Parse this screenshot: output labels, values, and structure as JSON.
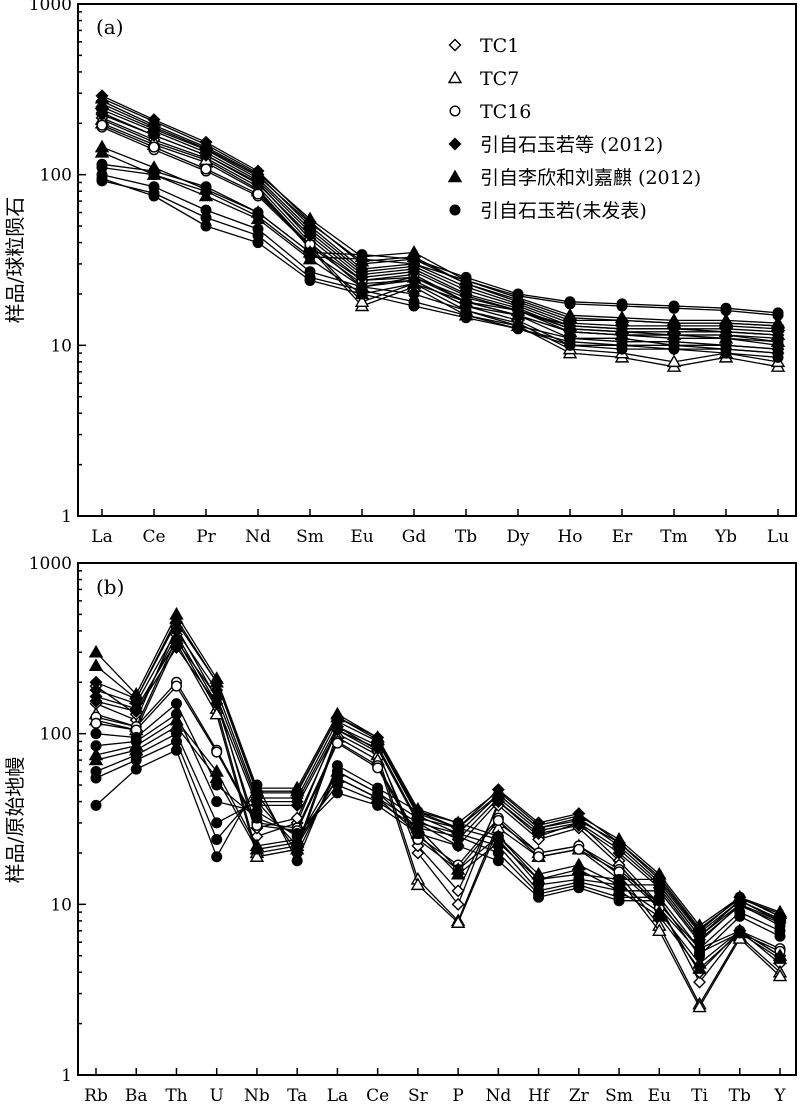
{
  "chart_data": [
    {
      "type": "line",
      "panel_label": "(a)",
      "ylabel": "样品/球粒陨石",
      "yscale": "log",
      "ylim": [
        1,
        1000
      ],
      "yticks": [
        "1",
        "10",
        "100",
        "1000"
      ],
      "categories": [
        "La",
        "Ce",
        "Pr",
        "Nd",
        "Sm",
        "Eu",
        "Gd",
        "Tb",
        "Dy",
        "Ho",
        "Er",
        "Tm",
        "Yb",
        "Lu"
      ],
      "legend": [
        {
          "marker": "diamond-open",
          "label": "TC1"
        },
        {
          "marker": "triangle-open",
          "label": "TC7"
        },
        {
          "marker": "circle-open",
          "label": "TC16"
        },
        {
          "marker": "diamond-filled",
          "label": "引自石玉若等 (2012)"
        },
        {
          "marker": "triangle-filled",
          "label": "引自李欣和刘嘉麒 (2012)"
        },
        {
          "marker": "circle-filled",
          "label": "引自石玉若(未发表)"
        }
      ],
      "series": [
        {
          "name": "TC1",
          "marker": "diamond-open",
          "values": [
            215,
            160,
            125,
            85,
            40,
            22,
            24,
            17,
            14,
            10,
            10,
            9.5,
            9.5,
            9
          ]
        },
        {
          "name": "TC1",
          "marker": "diamond-open",
          "values": [
            230,
            170,
            130,
            90,
            42,
            24,
            26,
            18,
            15,
            11,
            11,
            10,
            10,
            9.5
          ]
        },
        {
          "name": "TC7",
          "marker": "triangle-open",
          "values": [
            200,
            150,
            118,
            80,
            37,
            17,
            22,
            15,
            13,
            9,
            8.5,
            7.5,
            8.5,
            7.5
          ]
        },
        {
          "name": "TC7",
          "marker": "triangle-open",
          "values": [
            210,
            155,
            122,
            82,
            38,
            18,
            23,
            16,
            13.5,
            9.5,
            9,
            8,
            9,
            8
          ]
        },
        {
          "name": "TC16",
          "marker": "circle-open",
          "values": [
            190,
            140,
            105,
            75,
            38,
            23,
            24,
            17,
            15,
            12,
            11.5,
            11,
            11,
            10
          ]
        },
        {
          "name": "TC16",
          "marker": "circle-open",
          "values": [
            195,
            145,
            108,
            77,
            39,
            24,
            25,
            18,
            16,
            12.5,
            12,
            11.5,
            11.5,
            10.5
          ]
        },
        {
          "name": "引自石玉若等 (2012)",
          "marker": "diamond-filled",
          "values": [
            290,
            210,
            155,
            105,
            53,
            30,
            32,
            23,
            18,
            14,
            14,
            13.5,
            13.5,
            13
          ]
        },
        {
          "name": "引自石玉若等 (2012)",
          "marker": "diamond-filled",
          "values": [
            270,
            195,
            145,
            100,
            50,
            28,
            30,
            22,
            17.5,
            13.5,
            13,
            13,
            13,
            12.5
          ]
        },
        {
          "name": "引自石玉若等 (2012)",
          "marker": "diamond-filled",
          "values": [
            250,
            185,
            140,
            95,
            48,
            27,
            29,
            21,
            17,
            13,
            12.5,
            12.5,
            12.5,
            12
          ]
        },
        {
          "name": "引自石玉若等 (2012)",
          "marker": "diamond-filled",
          "values": [
            240,
            180,
            135,
            92,
            46,
            26,
            28,
            20,
            16.5,
            12.5,
            12,
            12,
            12,
            11.5
          ]
        },
        {
          "name": "引自石玉若等 (2012)",
          "marker": "diamond-filled",
          "values": [
            225,
            170,
            130,
            88,
            44,
            25,
            27,
            19.5,
            16,
            12,
            11.5,
            11.5,
            11.5,
            11
          ]
        },
        {
          "name": "引自李欣和刘嘉麒 (2012)",
          "marker": "triangle-filled",
          "values": [
            280,
            205,
            150,
            102,
            55,
            33,
            35,
            24,
            19,
            15,
            14.5,
            14,
            14,
            13.5
          ]
        },
        {
          "name": "引自李欣和刘嘉麒 (2012)",
          "marker": "triangle-filled",
          "values": [
            260,
            190,
            142,
            98,
            52,
            31,
            33,
            23,
            18.5,
            14.5,
            14,
            13.5,
            13.5,
            13
          ]
        },
        {
          "name": "引自李欣和刘嘉麒 (2012)",
          "marker": "triangle-filled",
          "values": [
            145,
            110,
            82,
            60,
            35,
            22,
            25,
            19,
            16,
            13,
            12.5,
            12.5,
            12,
            11.5
          ]
        },
        {
          "name": "引自李欣和刘嘉麒 (2012)",
          "marker": "triangle-filled",
          "values": [
            135,
            100,
            75,
            55,
            32,
            20,
            23,
            18,
            15,
            12,
            11.5,
            11.5,
            11,
            10.5
          ]
        },
        {
          "name": "引自石玉若(未发表)",
          "marker": "circle-filled",
          "values": [
            115,
            105,
            85,
            60,
            35,
            34,
            32,
            25,
            20,
            18,
            17.5,
            17,
            16.5,
            15.5
          ]
        },
        {
          "name": "引自石玉若(未发表)",
          "marker": "circle-filled",
          "values": [
            110,
            100,
            80,
            57,
            33,
            32,
            30,
            24,
            19.5,
            17.5,
            17,
            16.5,
            16,
            15
          ]
        },
        {
          "name": "引自石玉若(未发表)",
          "marker": "circle-filled",
          "values": [
            100,
            85,
            62,
            48,
            27,
            22,
            20,
            16,
            13,
            11,
            10.5,
            10.5,
            10,
            9.5
          ]
        },
        {
          "name": "引自石玉若(未发表)",
          "marker": "circle-filled",
          "values": [
            92,
            78,
            56,
            44,
            25,
            21,
            18,
            15,
            12.5,
            10.5,
            10,
            10,
            9.5,
            9
          ]
        },
        {
          "name": "引自石玉若(未发表)",
          "marker": "circle-filled",
          "values": [
            95,
            75,
            50,
            40,
            24,
            20,
            17,
            14.5,
            12.5,
            10,
            9.5,
            9.5,
            9,
            8.5
          ]
        }
      ]
    },
    {
      "type": "line",
      "panel_label": "(b)",
      "ylabel": "样品/原始地幔",
      "yscale": "log",
      "ylim": [
        1,
        1000
      ],
      "yticks": [
        "1",
        "10",
        "100",
        "1000"
      ],
      "categories": [
        "Rb",
        "Ba",
        "Th",
        "U",
        "Nb",
        "Ta",
        "La",
        "Ce",
        "Sr",
        "P",
        "Nd",
        "Hf",
        "Zr",
        "Sm",
        "Eu",
        "Ti",
        "Tb",
        "Y"
      ],
      "series": [
        {
          "name": "TC1",
          "marker": "diamond-open",
          "values": [
            150,
            120,
            420,
            160,
            25,
            30,
            110,
            80,
            20,
            10,
            40,
            25,
            30,
            18,
            10,
            3.5,
            7,
            4.5
          ]
        },
        {
          "name": "TC1",
          "marker": "diamond-open",
          "values": [
            190,
            130,
            380,
            150,
            28,
            32,
            105,
            78,
            22,
            12,
            38,
            24,
            28,
            17,
            9.5,
            4,
            7,
            5
          ]
        },
        {
          "name": "TC7",
          "marker": "triangle-open",
          "values": [
            130,
            110,
            360,
            140,
            20,
            22,
            100,
            75,
            14,
            8,
            30,
            20,
            22,
            15,
            7.5,
            2.6,
            6.5,
            4
          ]
        },
        {
          "name": "TC7",
          "marker": "triangle-open",
          "values": [
            120,
            105,
            340,
            130,
            19,
            21,
            95,
            70,
            13,
            7.8,
            28,
            19,
            21,
            14,
            7,
            2.5,
            6.3,
            3.8
          ]
        },
        {
          "name": "TC16",
          "marker": "circle-open",
          "values": [
            125,
            110,
            200,
            80,
            30,
            28,
            90,
            65,
            25,
            17,
            32,
            20,
            22,
            16,
            10,
            5.5,
            7,
            5.5
          ]
        },
        {
          "name": "TC16",
          "marker": "circle-open",
          "values": [
            115,
            105,
            190,
            78,
            29,
            27,
            88,
            63,
            24,
            16,
            31,
            19,
            21,
            15.5,
            9.5,
            5.2,
            6.8,
            5.3
          ]
        },
        {
          "name": "引自石玉若等 (2012)",
          "marker": "diamond-filled",
          "values": [
            200,
            160,
            450,
            200,
            45,
            45,
            125,
            95,
            35,
            28,
            47,
            30,
            34,
            23,
            14,
            7,
            11,
            8.5
          ]
        },
        {
          "name": "引自石玉若等 (2012)",
          "marker": "diamond-filled",
          "values": [
            180,
            150,
            400,
            180,
            42,
            42,
            118,
            90,
            33,
            26,
            44,
            28,
            32,
            22,
            13.5,
            6.8,
            10.5,
            8.2
          ]
        },
        {
          "name": "引自石玉若等 (2012)",
          "marker": "diamond-filled",
          "values": [
            165,
            140,
            350,
            165,
            40,
            40,
            110,
            85,
            31,
            24,
            42,
            27,
            30,
            21,
            13,
            6.5,
            10,
            8
          ]
        },
        {
          "name": "引自石玉若等 (2012)",
          "marker": "diamond-filled",
          "values": [
            155,
            135,
            320,
            150,
            38,
            38,
            105,
            82,
            30,
            22,
            40,
            26,
            29,
            20,
            12.5,
            6.2,
            9.8,
            7.8
          ]
        },
        {
          "name": "引自李欣和刘嘉麒 (2012)",
          "marker": "triangle-filled",
          "values": [
            300,
            170,
            500,
            210,
            48,
            48,
            130,
            95,
            36,
            30,
            46,
            29,
            33,
            24,
            15,
            7.5,
            11,
            9
          ]
        },
        {
          "name": "引自李欣和刘嘉麒 (2012)",
          "marker": "triangle-filled",
          "values": [
            250,
            160,
            470,
            200,
            46,
            46,
            125,
            92,
            34,
            28,
            44,
            28,
            31,
            23,
            14.5,
            7.2,
            10.8,
            8.8
          ]
        },
        {
          "name": "引自李欣和刘嘉麒 (2012)",
          "marker": "triangle-filled",
          "values": [
            75,
            85,
            120,
            60,
            22,
            24,
            60,
            45,
            28,
            16,
            25,
            15,
            17,
            13,
            9,
            4.5,
            7,
            5
          ]
        },
        {
          "name": "引自李欣和刘嘉麒 (2012)",
          "marker": "triangle-filled",
          "values": [
            70,
            80,
            110,
            55,
            21,
            23,
            55,
            42,
            26,
            15,
            23,
            14,
            16,
            12,
            8.5,
            4.2,
            6.8,
            4.8
          ]
        },
        {
          "name": "引自石玉若(未发表)",
          "marker": "circle-filled",
          "values": [
            38,
            62,
            80,
            19,
            50,
            18,
            65,
            48,
            35,
            30,
            25,
            14,
            15,
            14,
            14,
            7,
            11,
            8.5
          ]
        },
        {
          "name": "引自石玉若(未发表)",
          "marker": "circle-filled",
          "values": [
            55,
            70,
            90,
            24,
            45,
            20,
            60,
            45,
            32,
            28,
            24,
            13,
            14,
            13,
            13,
            6.5,
            10.5,
            8
          ]
        },
        {
          "name": "引自石玉若(未发表)",
          "marker": "circle-filled",
          "values": [
            60,
            75,
            100,
            30,
            40,
            22,
            55,
            42,
            30,
            26,
            22,
            12,
            13.5,
            12,
            12,
            6,
            10,
            7.5
          ]
        },
        {
          "name": "引自石玉若(未发表)",
          "marker": "circle-filled",
          "values": [
            85,
            90,
            130,
            40,
            35,
            25,
            50,
            40,
            28,
            25,
            20,
            11.5,
            13,
            11,
            11,
            5.5,
            9,
            7
          ]
        },
        {
          "name": "引自石玉若(未发表)",
          "marker": "circle-filled",
          "values": [
            100,
            95,
            150,
            50,
            32,
            26,
            45,
            38,
            26,
            22,
            18,
            11,
            12.5,
            10.5,
            10.5,
            5,
            8.5,
            6.5
          ]
        }
      ]
    }
  ]
}
